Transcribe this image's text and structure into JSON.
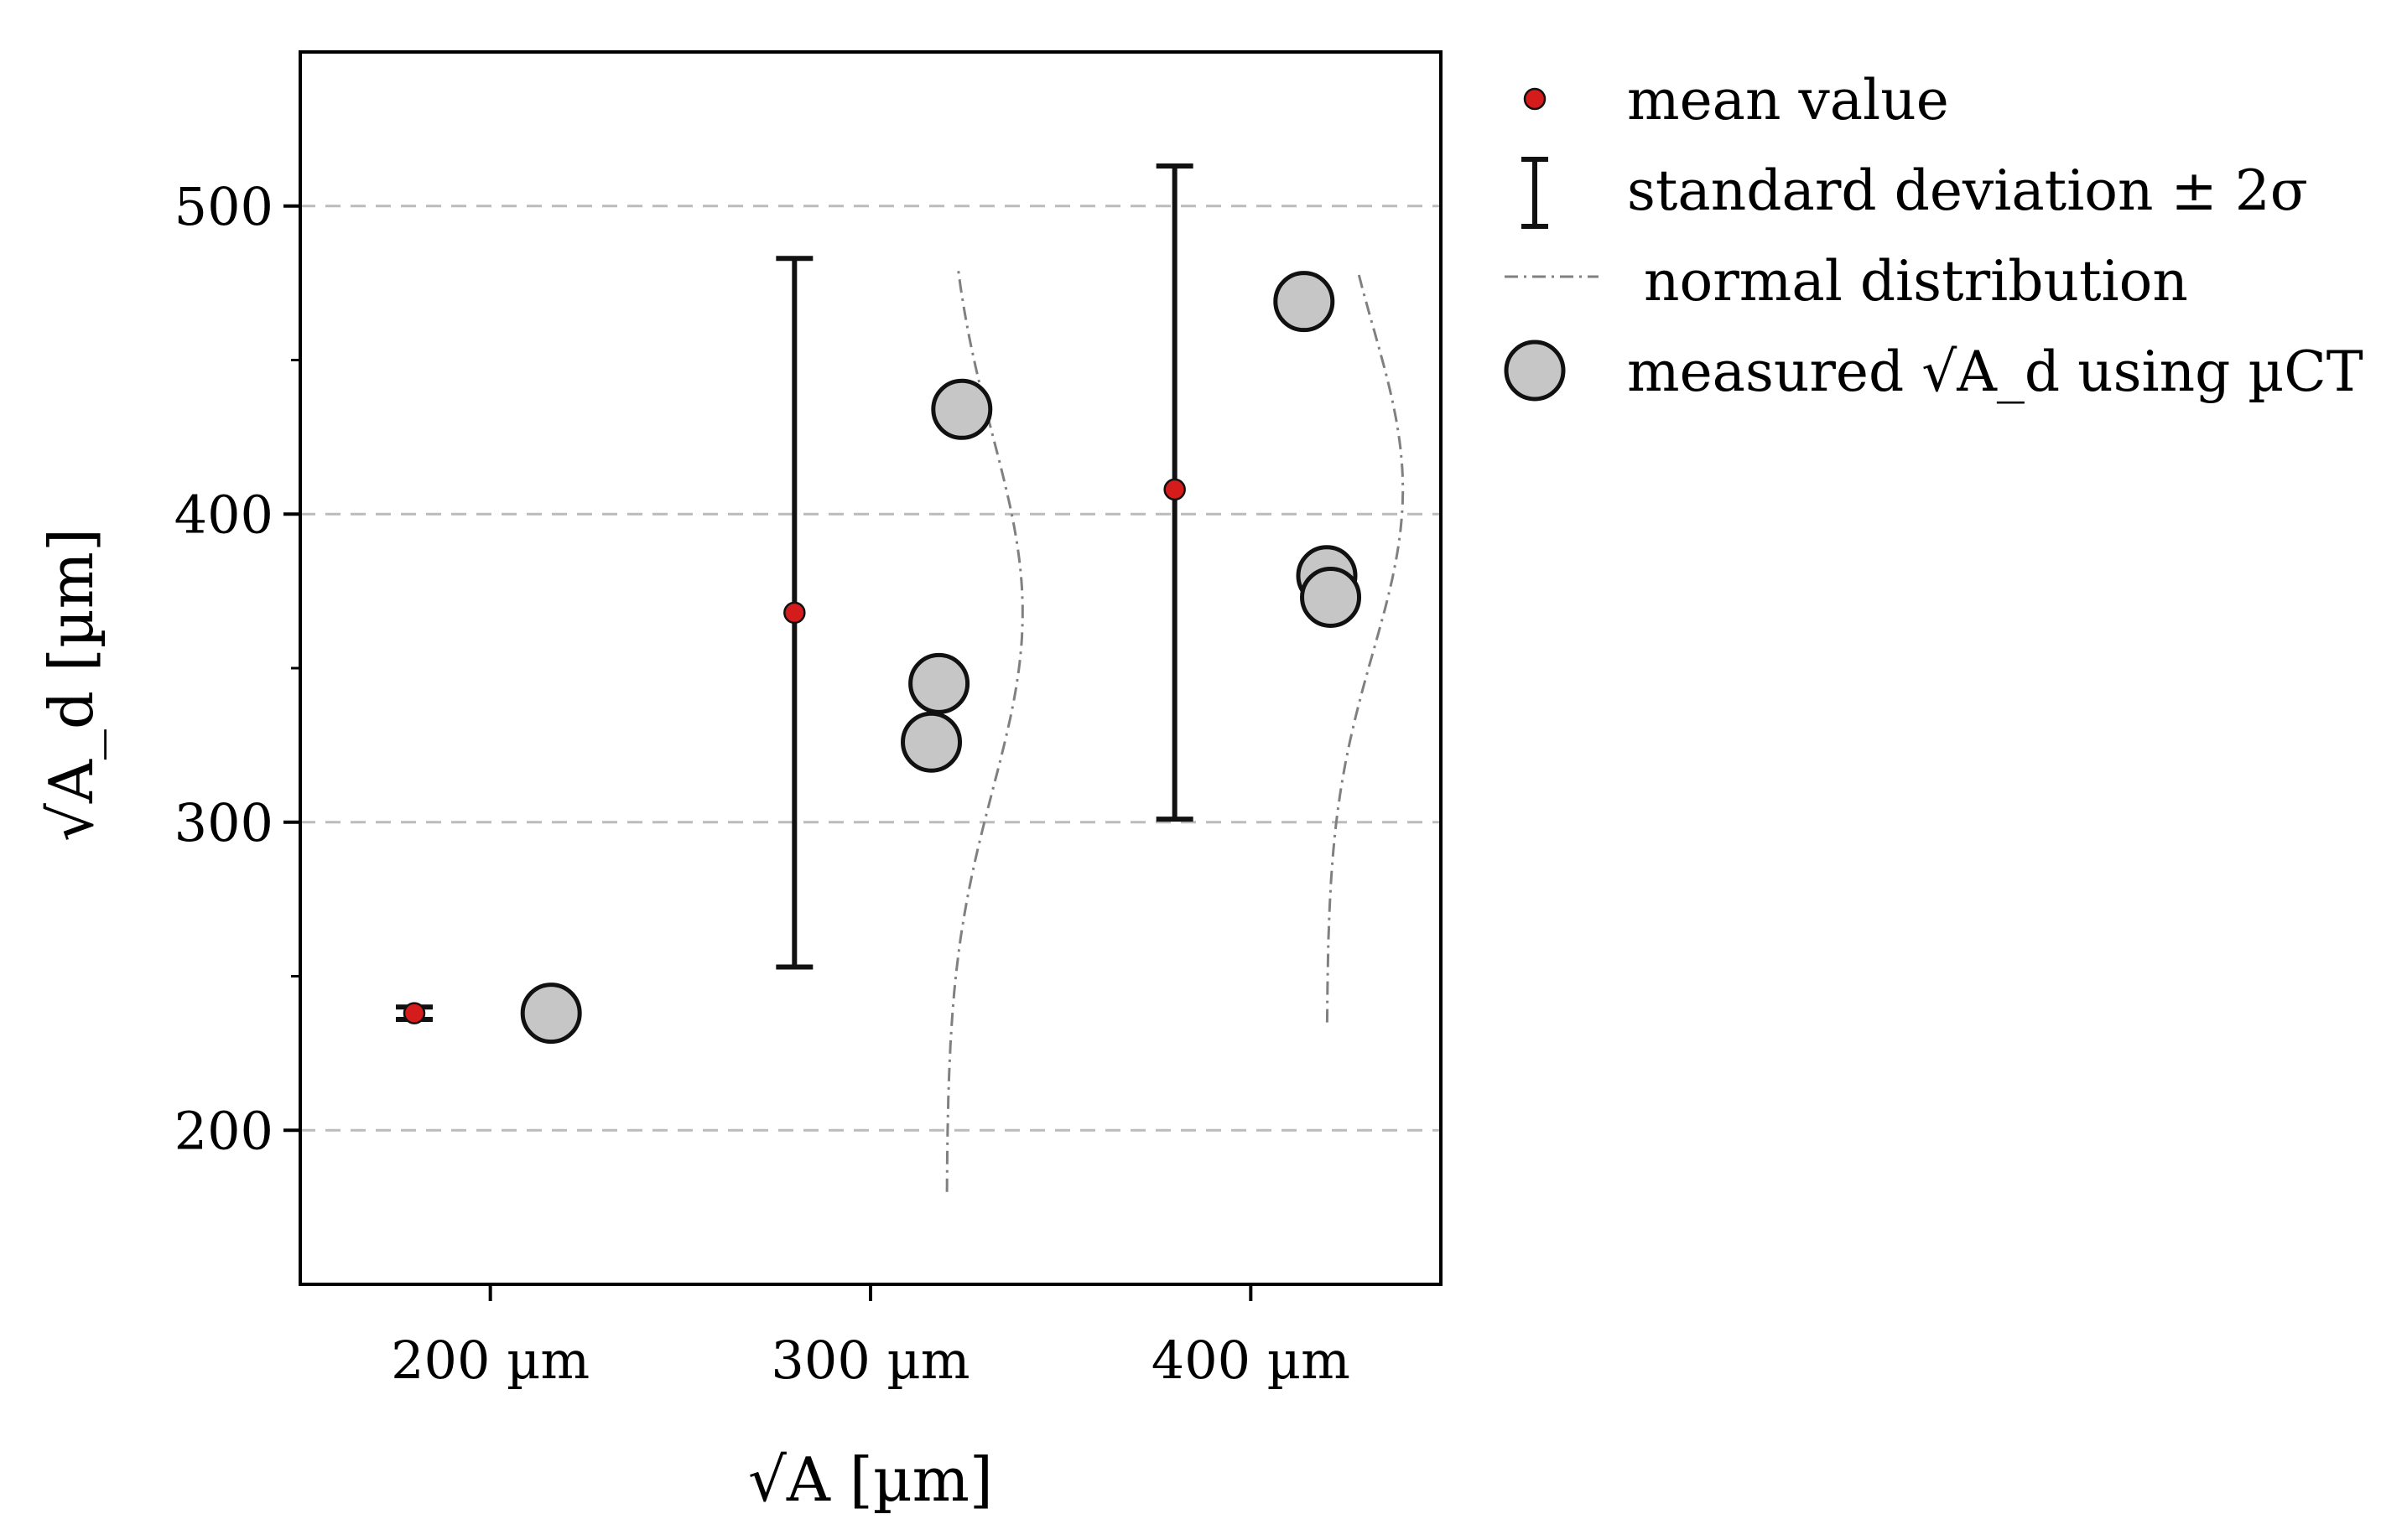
{
  "chart_data": {
    "type": "scatter",
    "xlabel": "√A [µm]",
    "ylabel": "√A_d [µm]",
    "ylim": [
      150,
      550
    ],
    "xlim": [
      150,
      450
    ],
    "grid": "horizontal-dashed",
    "legend_placement": "outside-right",
    "categories": [
      "200 µm",
      "300 µm",
      "400 µm"
    ],
    "category_positions": [
      200,
      300,
      400
    ],
    "yticks_major": [
      200,
      300,
      400,
      500
    ],
    "yticks_minor": [
      250,
      350,
      450
    ],
    "mean_values": [
      {
        "x": 180,
        "y": 238,
        "error_low": 236,
        "error_high": 240
      },
      {
        "x": 280,
        "y": 368,
        "error_low": 253,
        "error_high": 483
      },
      {
        "x": 380,
        "y": 408,
        "error_low": 301,
        "error_high": 513
      }
    ],
    "measured": [
      {
        "x": 216,
        "y": 238
      },
      {
        "x": 318,
        "y": 345
      },
      {
        "x": 316,
        "y": 326
      },
      {
        "x": 324,
        "y": 434
      },
      {
        "x": 414,
        "y": 469
      },
      {
        "x": 420,
        "y": 380
      },
      {
        "x": 421,
        "y": 373
      }
    ],
    "normal_distribution": [
      {
        "base_x": 320,
        "mean": 368,
        "sigma": 57.5,
        "amplitude": 20,
        "y_range": [
          180,
          480
        ]
      },
      {
        "base_x": 420,
        "mean": 408,
        "sigma": 53,
        "amplitude": 20,
        "y_range": [
          235,
          480
        ]
      }
    ],
    "colors": {
      "mean": "#d41c1c",
      "measured_fill": "#c6c6c6",
      "grid": "#bbbbbb",
      "normal": "#808080",
      "ink": "#111111"
    },
    "legend": {
      "items": [
        {
          "label": "mean value",
          "marker": "mean"
        },
        {
          "label": "standard deviation ± 2σ",
          "marker": "errorbar"
        },
        {
          "label": "normal distribution",
          "marker": "dashdot"
        },
        {
          "label": "measured √A_d using µCT",
          "marker": "measured"
        }
      ]
    }
  }
}
